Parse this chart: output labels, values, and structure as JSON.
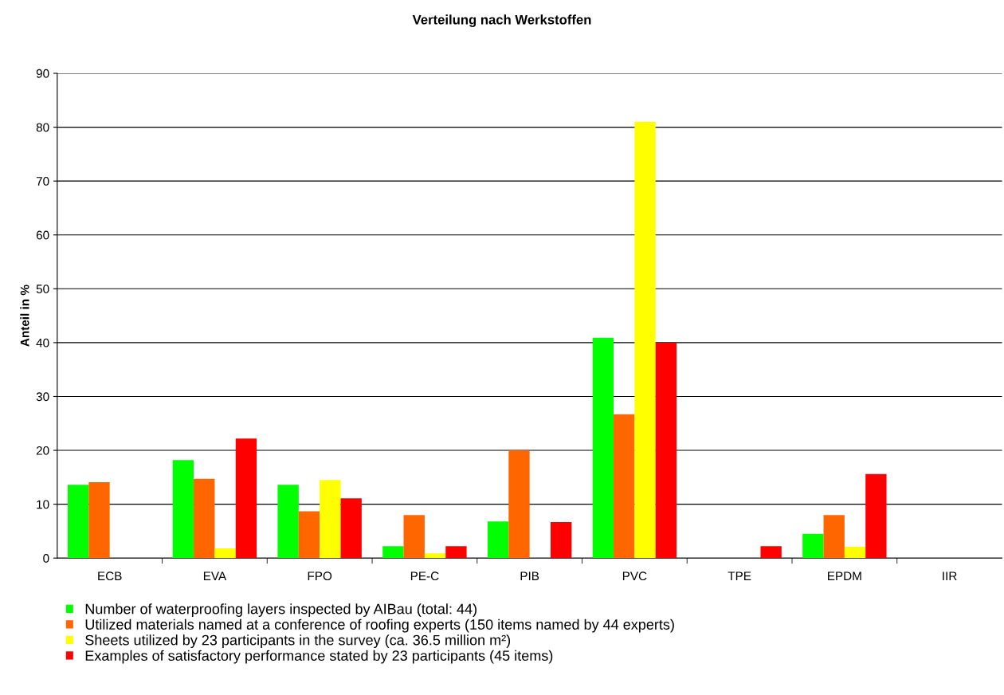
{
  "chart_data": {
    "type": "bar",
    "title": "Verteilung nach Werkstoffen",
    "ylabel": "Anteil in %",
    "categories": [
      "ECB",
      "EVA",
      "FPO",
      "PE-C",
      "PIB",
      "PVC",
      "TPE",
      "EPDM",
      "IIR"
    ],
    "series": [
      {
        "name": "Number of waterproofing layers inspected by AIBau (total: 44)",
        "color": "#00ff00",
        "values": [
          13.6,
          18.2,
          13.6,
          2.2,
          6.8,
          40.9,
          0,
          4.5,
          0
        ]
      },
      {
        "name": "Utilized materials named at a conference of roofing experts (150 items named by 44 experts)",
        "color": "#ff6600",
        "values": [
          14.1,
          14.7,
          8.7,
          8.0,
          20.0,
          26.7,
          0,
          8.0,
          0
        ]
      },
      {
        "name": "Sheets utilized by 23 participants in the survey (ca. 36.5 million m²)",
        "color": "#ffff00",
        "values": [
          0,
          1.8,
          14.5,
          0.9,
          0,
          81.0,
          0,
          2.1,
          0
        ]
      },
      {
        "name": "Examples of satisfactory performance stated by 23 participants (45 items)",
        "color": "#ff0000",
        "values": [
          0,
          22.2,
          11.1,
          2.2,
          6.7,
          40.0,
          2.2,
          15.6,
          0
        ]
      }
    ],
    "ylim": [
      0,
      90
    ],
    "yticks": [
      0,
      10,
      20,
      30,
      40,
      50,
      60,
      70,
      80,
      90
    ],
    "grid": "y",
    "legend": "bottom left"
  }
}
